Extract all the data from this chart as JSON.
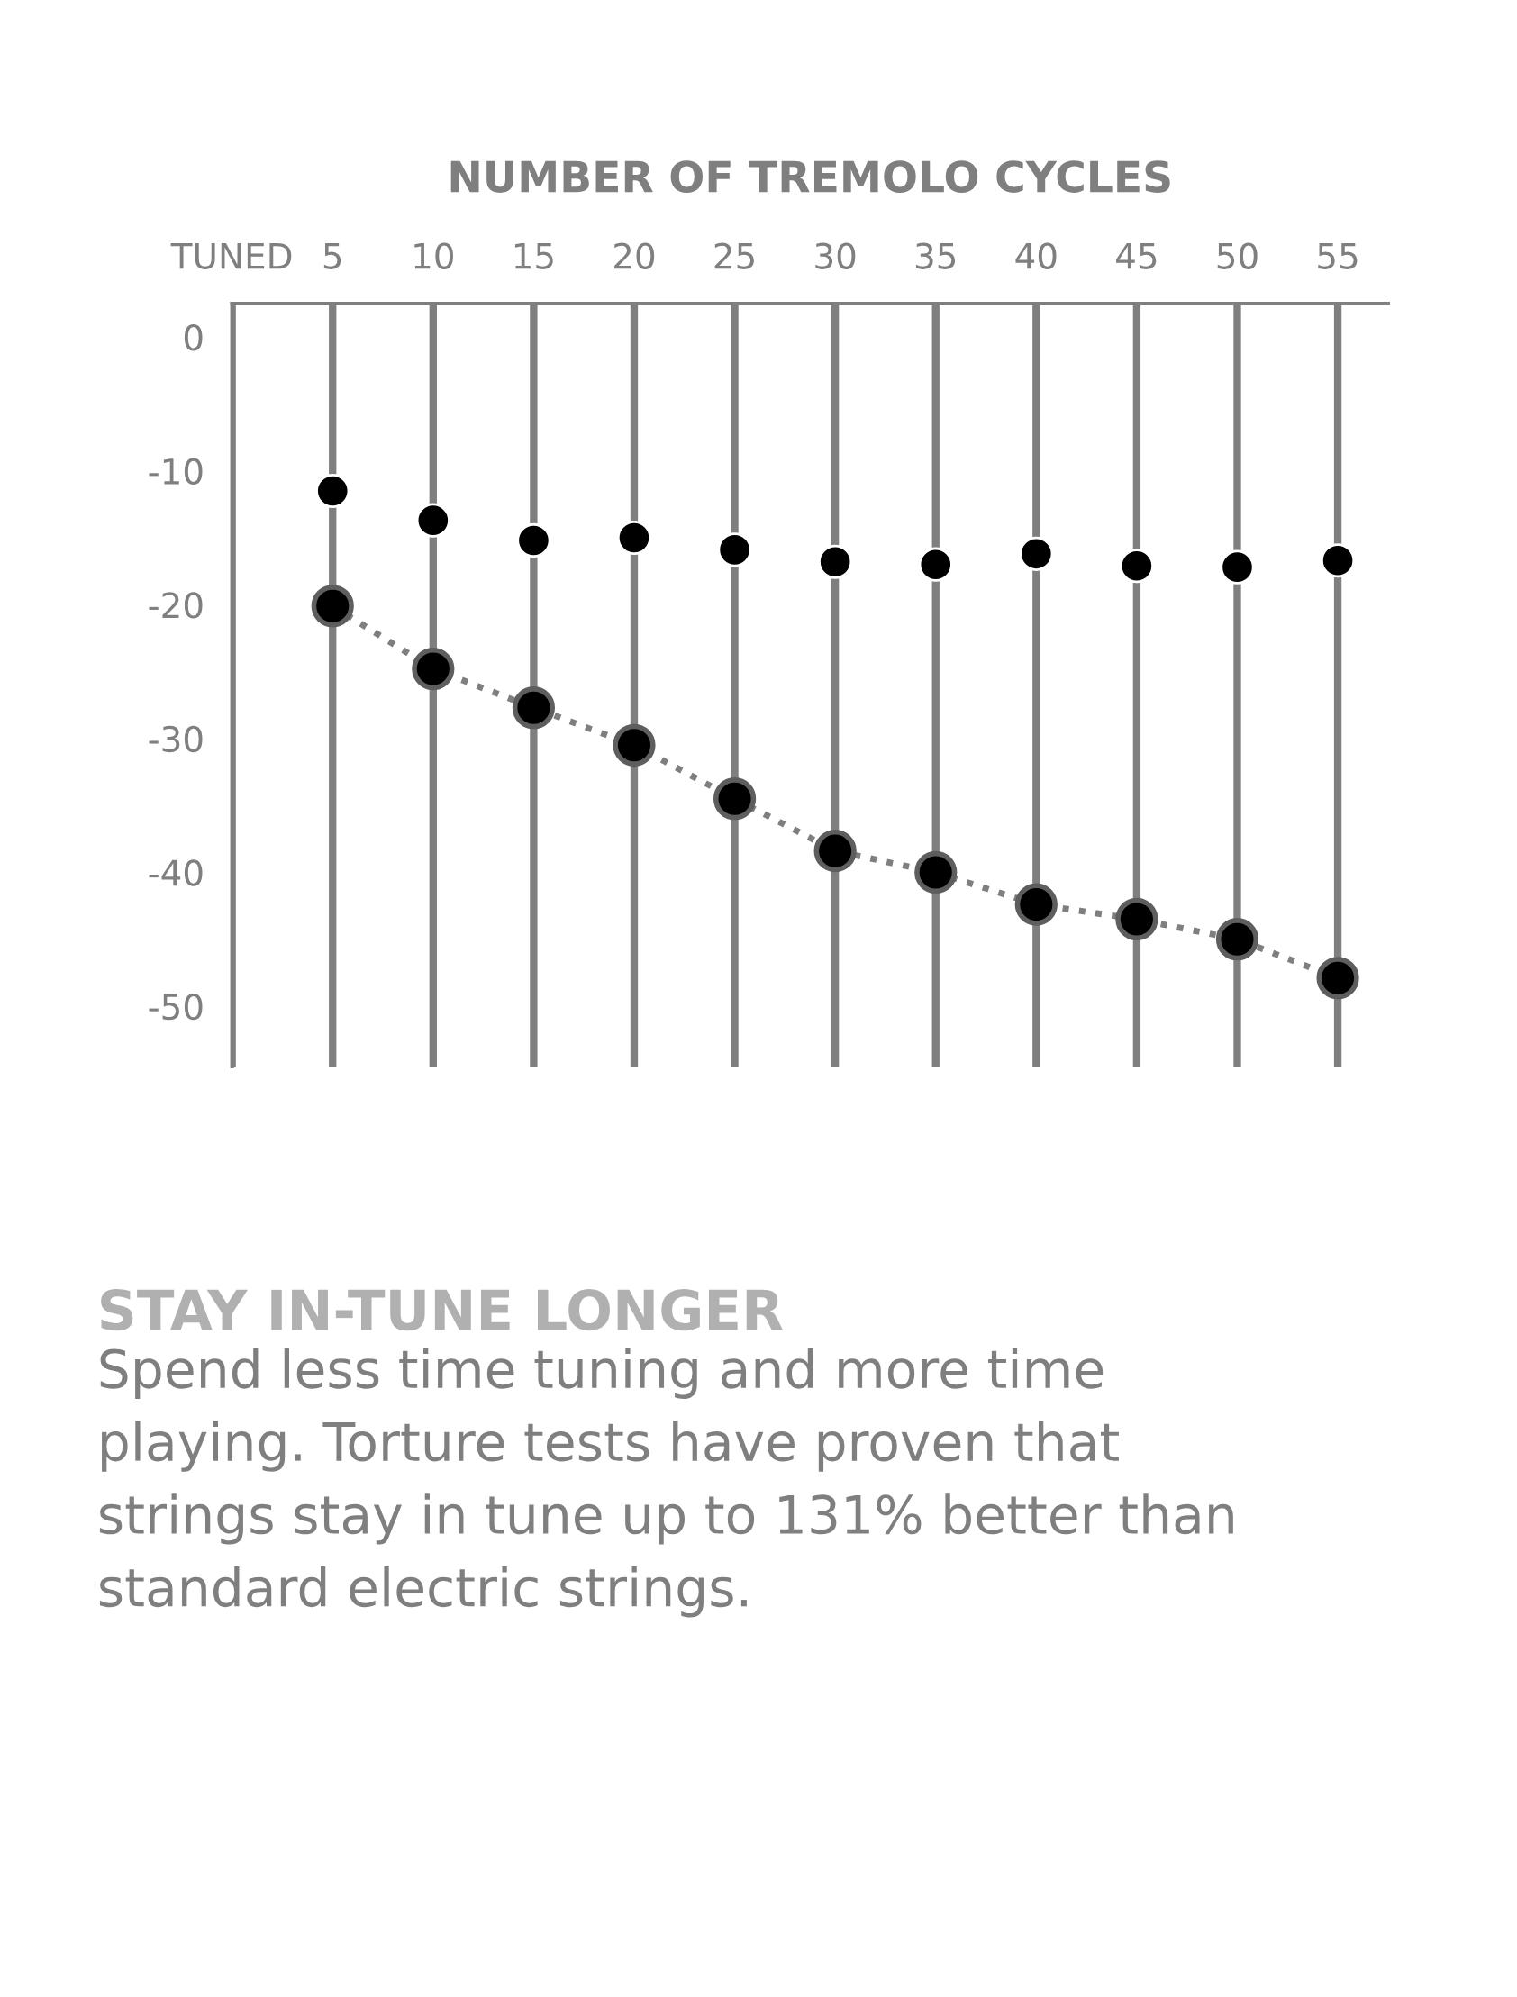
{
  "chart_data": {
    "type": "line",
    "xlabel": "NUMBER OF TREMOLO CYCLES",
    "categories": [
      "TUNED",
      "5",
      "10",
      "15",
      "20",
      "25",
      "30",
      "35",
      "40",
      "45",
      "50",
      "55"
    ],
    "series": [
      {
        "type": "scatter",
        "color": "#000000",
        "values": [
          null,
          -11.5,
          -13.7,
          -15.2,
          -15.0,
          -15.9,
          -16.8,
          -17.0,
          -16.2,
          -17.1,
          -17.2,
          -16.7
        ]
      },
      {
        "color": "#7f7f7f",
        "line_style": "dotted",
        "values": [
          null,
          -20.1,
          -24.8,
          -27.7,
          -30.5,
          -34.5,
          -38.4,
          -40.0,
          -42.4,
          -43.5,
          -45.0,
          -47.9
        ]
      }
    ],
    "ylim": [
      -54.5,
      2.5
    ],
    "yticks": [
      0,
      {
        "value": -10,
        "label": "-10"
      },
      {
        "value": -20,
        "label": "-20"
      },
      {
        "value": -30,
        "label": "-30"
      },
      {
        "value": -40,
        "label": "-40"
      },
      {
        "value": -50,
        "label": "-50"
      }
    ],
    "grid": "x",
    "marker": "circle",
    "annotations": [
      "STAY IN-TUNE LONGER",
      "Spend less time tuning and more time playing. Torture tests have proven that strings stay in tune up to 131% better than standard electric strings."
    ]
  }
}
